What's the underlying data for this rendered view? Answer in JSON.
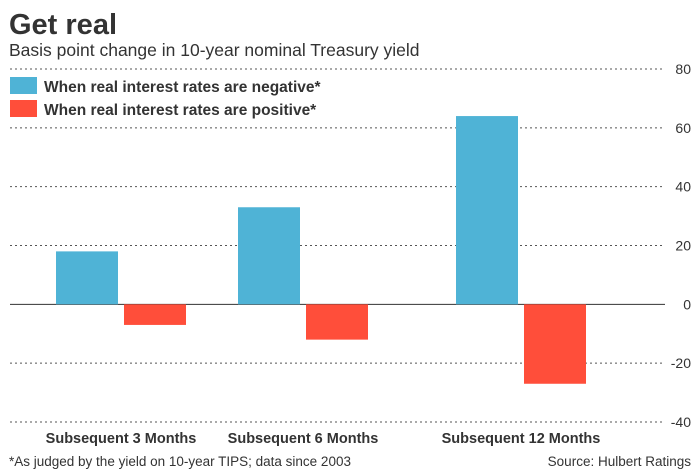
{
  "chart_data": {
    "type": "bar",
    "title": "Get real",
    "subtitle": "Basis point change in 10-year nominal Treasury yield",
    "categories": [
      "Subsequent 3 Months",
      "Subsequent 6 Months",
      "Subsequent 12 Months"
    ],
    "series": [
      {
        "name": "When real interest rates are negative*",
        "color": "#4fb3d6",
        "values": [
          18,
          33,
          64
        ]
      },
      {
        "name": "When real interest rates are positive*",
        "color": "#ff4e3a",
        "values": [
          -7,
          -12,
          -27
        ]
      }
    ],
    "yticks": [
      80,
      60,
      40,
      20,
      0,
      -20,
      -40
    ],
    "ylim": [
      -40,
      80
    ],
    "grid": true,
    "y_axis_position": "right",
    "legend_position": "top-left",
    "footnote": "*As judged by the yield on 10-year TIPS; data since 2003",
    "source": "Source: Hulbert Ratings"
  }
}
